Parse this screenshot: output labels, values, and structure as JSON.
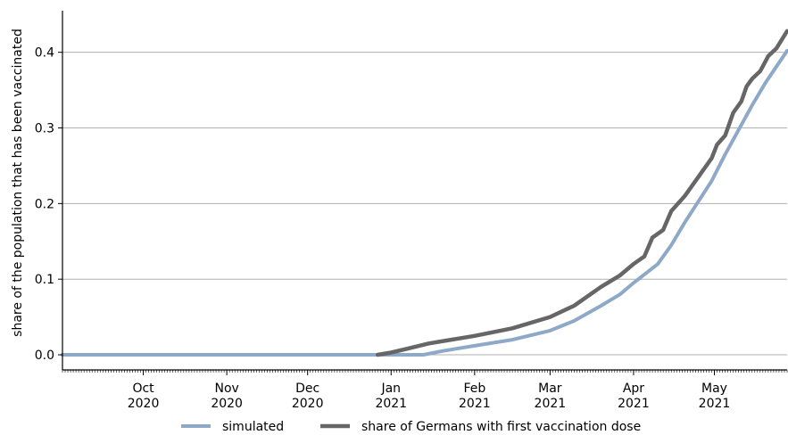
{
  "chart_data": {
    "type": "line",
    "title": "",
    "xlabel": "",
    "ylabel": "share of the population that has been vaccinated",
    "xlim": [
      "2020-09-01",
      "2021-05-28"
    ],
    "ylim": [
      -0.02,
      0.455
    ],
    "grid": {
      "y": true,
      "x": false
    },
    "y_ticks": [
      {
        "value": 0.0,
        "label": "0.0"
      },
      {
        "value": 0.1,
        "label": "0.1"
      },
      {
        "value": 0.2,
        "label": "0.2"
      },
      {
        "value": 0.3,
        "label": "0.3"
      },
      {
        "value": 0.4,
        "label": "0.4"
      }
    ],
    "x_ticks": [
      {
        "date": "2020-10-01",
        "month": "Oct",
        "year": "2020"
      },
      {
        "date": "2020-11-01",
        "month": "Nov",
        "year": "2020"
      },
      {
        "date": "2020-12-01",
        "month": "Dec",
        "year": "2020"
      },
      {
        "date": "2021-01-01",
        "month": "Jan",
        "year": "2021"
      },
      {
        "date": "2021-02-01",
        "month": "Feb",
        "year": "2021"
      },
      {
        "date": "2021-03-01",
        "month": "Mar",
        "year": "2021"
      },
      {
        "date": "2021-04-01",
        "month": "Apr",
        "year": "2021"
      },
      {
        "date": "2021-05-01",
        "month": "May",
        "year": "2021"
      }
    ],
    "legend_placement": "bottom-center",
    "series": [
      {
        "name": "simulated",
        "color": "#8ea9c8",
        "points": [
          [
            "2020-09-01",
            0.0
          ],
          [
            "2020-12-27",
            0.0
          ],
          [
            "2021-01-13",
            0.0
          ],
          [
            "2021-01-20",
            0.005
          ],
          [
            "2021-02-01",
            0.012
          ],
          [
            "2021-02-15",
            0.02
          ],
          [
            "2021-03-01",
            0.032
          ],
          [
            "2021-03-10",
            0.045
          ],
          [
            "2021-03-20",
            0.065
          ],
          [
            "2021-03-27",
            0.08
          ],
          [
            "2021-04-01",
            0.095
          ],
          [
            "2021-04-10",
            0.12
          ],
          [
            "2021-04-15",
            0.145
          ],
          [
            "2021-04-20",
            0.175
          ],
          [
            "2021-04-30",
            0.23
          ],
          [
            "2021-05-05",
            0.265
          ],
          [
            "2021-05-15",
            0.33
          ],
          [
            "2021-05-20",
            0.36
          ],
          [
            "2021-05-28",
            0.402
          ]
        ]
      },
      {
        "name": "share of Germans with first vaccination dose",
        "color": "#666666",
        "points": [
          [
            "2020-12-27",
            0.0
          ],
          [
            "2021-01-01",
            0.003
          ],
          [
            "2021-01-07",
            0.008
          ],
          [
            "2021-01-15",
            0.015
          ],
          [
            "2021-02-01",
            0.025
          ],
          [
            "2021-02-15",
            0.035
          ],
          [
            "2021-03-01",
            0.05
          ],
          [
            "2021-03-10",
            0.065
          ],
          [
            "2021-03-20",
            0.09
          ],
          [
            "2021-03-27",
            0.105
          ],
          [
            "2021-04-01",
            0.12
          ],
          [
            "2021-04-05",
            0.13
          ],
          [
            "2021-04-08",
            0.155
          ],
          [
            "2021-04-12",
            0.165
          ],
          [
            "2021-04-15",
            0.19
          ],
          [
            "2021-04-20",
            0.21
          ],
          [
            "2021-04-25",
            0.235
          ],
          [
            "2021-04-30",
            0.26
          ],
          [
            "2021-05-02",
            0.278
          ],
          [
            "2021-05-05",
            0.29
          ],
          [
            "2021-05-08",
            0.32
          ],
          [
            "2021-05-11",
            0.335
          ],
          [
            "2021-05-13",
            0.355
          ],
          [
            "2021-05-15",
            0.365
          ],
          [
            "2021-05-18",
            0.375
          ],
          [
            "2021-05-21",
            0.395
          ],
          [
            "2021-05-24",
            0.405
          ],
          [
            "2021-05-28",
            0.428
          ]
        ]
      }
    ]
  }
}
